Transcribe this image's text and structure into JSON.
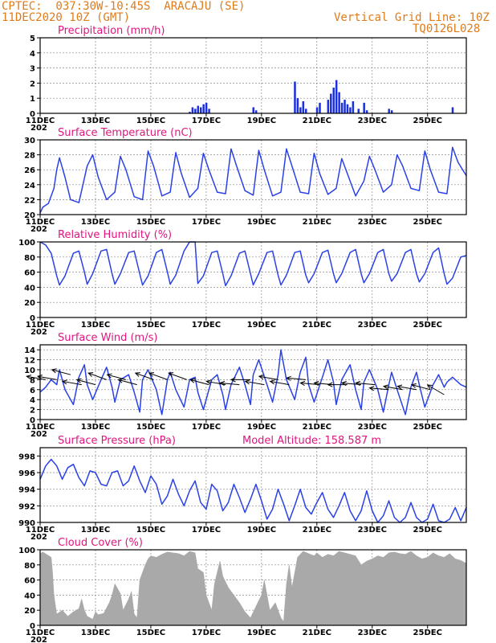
{
  "header": {
    "location": "CPTEC:  037:30W-10:45S  ARACAJU (SE)",
    "datetime": "11DEC2020 10Z (GMT)",
    "grid_note": "Vertical Grid Line: 10Z",
    "model_code": "TQ0126L028"
  },
  "x_labels": [
    "11DEC",
    "13DEC",
    "15DEC",
    "17DEC",
    "19DEC",
    "21DEC",
    "23DEC",
    "25DEC"
  ],
  "year_stub": "202",
  "chart_data": [
    {
      "type": "bar",
      "title": "Precipitation (mm/h)",
      "ylim": [
        0,
        5
      ],
      "yticks": [
        0,
        1,
        2,
        3,
        4,
        5
      ],
      "x": [
        5.4,
        5.5,
        5.6,
        5.7,
        5.8,
        5.9,
        6.0,
        6.1,
        7.7,
        7.8,
        9.2,
        9.3,
        9.4,
        9.5,
        9.6,
        10.0,
        10.1,
        10.4,
        10.5,
        10.6,
        10.7,
        10.8,
        10.9,
        11.0,
        11.1,
        11.2,
        11.3,
        11.5,
        11.7,
        11.8,
        12.6,
        12.7,
        14.9
      ],
      "values": [
        0.1,
        0.4,
        0.3,
        0.5,
        0.4,
        0.6,
        0.7,
        0.3,
        0.4,
        0.2,
        2.1,
        1.0,
        0.4,
        0.8,
        0.3,
        0.4,
        0.7,
        0.9,
        1.3,
        1.7,
        2.2,
        1.4,
        0.7,
        0.9,
        0.6,
        0.4,
        0.8,
        0.3,
        0.7,
        0.2,
        0.3,
        0.2,
        0.4
      ],
      "grid": true
    },
    {
      "type": "line",
      "title": "Surface Temperature (nC)",
      "ylim": [
        20,
        30
      ],
      "yticks": [
        20,
        22,
        24,
        26,
        28,
        30
      ],
      "x": [
        0,
        0.1,
        0.3,
        0.5,
        0.6,
        0.7,
        0.9,
        1.1,
        1.4,
        1.7,
        1.9,
        2.1,
        2.4,
        2.7,
        2.9,
        3.1,
        3.4,
        3.7,
        3.9,
        4.1,
        4.4,
        4.7,
        4.9,
        5.1,
        5.4,
        5.7,
        5.9,
        6.1,
        6.4,
        6.7,
        6.9,
        7.1,
        7.4,
        7.7,
        7.9,
        8.1,
        8.4,
        8.7,
        8.9,
        9.1,
        9.4,
        9.7,
        9.9,
        10.1,
        10.4,
        10.7,
        10.9,
        11.1,
        11.4,
        11.7,
        11.9,
        12.1,
        12.4,
        12.7,
        12.9,
        13.1,
        13.4,
        13.7,
        13.9,
        14.1,
        14.4,
        14.7,
        14.9,
        15.1,
        15.4
      ],
      "values": [
        20.2,
        21.0,
        21.5,
        23.5,
        26.0,
        27.6,
        25.0,
        22.0,
        21.6,
        26.5,
        28.0,
        25.0,
        22.0,
        23.0,
        27.8,
        26.0,
        22.4,
        22.0,
        28.5,
        26.5,
        22.5,
        23.0,
        28.3,
        25.5,
        22.3,
        23.5,
        28.2,
        26.0,
        23.0,
        22.8,
        28.8,
        26.5,
        23.2,
        22.6,
        28.6,
        26.0,
        22.5,
        23.0,
        28.8,
        26.5,
        23.0,
        22.8,
        28.2,
        25.5,
        22.7,
        23.5,
        27.5,
        25.5,
        22.5,
        24.5,
        27.8,
        26.0,
        23.0,
        24.0,
        28.0,
        26.5,
        23.5,
        23.2,
        28.5,
        26.0,
        23.0,
        22.8,
        29.0,
        27.0,
        25.2
      ],
      "grid": true
    },
    {
      "type": "line",
      "title": "Relative Humidity (%)",
      "ylim": [
        0,
        100
      ],
      "yticks": [
        0,
        20,
        40,
        60,
        80,
        100
      ],
      "x": [
        0,
        0.2,
        0.4,
        0.6,
        0.7,
        0.9,
        1.2,
        1.4,
        1.6,
        1.7,
        1.9,
        2.2,
        2.4,
        2.6,
        2.7,
        2.9,
        3.2,
        3.4,
        3.6,
        3.7,
        3.9,
        4.2,
        4.4,
        4.6,
        4.7,
        4.9,
        5.2,
        5.4,
        5.6,
        5.7,
        5.9,
        6.2,
        6.4,
        6.6,
        6.7,
        6.9,
        7.2,
        7.4,
        7.6,
        7.7,
        7.9,
        8.2,
        8.4,
        8.6,
        8.7,
        8.9,
        9.2,
        9.4,
        9.6,
        9.7,
        9.9,
        10.2,
        10.4,
        10.6,
        10.7,
        10.9,
        11.2,
        11.4,
        11.6,
        11.7,
        11.9,
        12.2,
        12.4,
        12.6,
        12.7,
        12.9,
        13.2,
        13.4,
        13.6,
        13.7,
        13.9,
        14.2,
        14.4,
        14.6,
        14.7,
        14.9,
        15.2,
        15.4
      ],
      "values": [
        100,
        96,
        85,
        55,
        43,
        55,
        85,
        88,
        60,
        44,
        58,
        88,
        90,
        58,
        44,
        58,
        86,
        88,
        58,
        43,
        55,
        86,
        90,
        60,
        44,
        56,
        88,
        100,
        100,
        45,
        55,
        86,
        88,
        58,
        42,
        55,
        85,
        88,
        58,
        43,
        58,
        86,
        88,
        56,
        43,
        56,
        86,
        88,
        56,
        46,
        58,
        86,
        89,
        58,
        46,
        58,
        86,
        90,
        58,
        46,
        58,
        86,
        90,
        58,
        48,
        58,
        86,
        90,
        58,
        47,
        58,
        86,
        92,
        58,
        44,
        52,
        80,
        82
      ],
      "grid": true
    },
    {
      "type": "line",
      "title": "Surface Wind (m/s)",
      "ylim": [
        0,
        15
      ],
      "yticks": [
        0,
        2,
        4,
        6,
        8,
        10,
        12,
        14
      ],
      "x": [
        0,
        0.2,
        0.4,
        0.6,
        0.7,
        0.9,
        1.2,
        1.4,
        1.6,
        1.7,
        1.9,
        2.2,
        2.4,
        2.6,
        2.7,
        2.9,
        3.2,
        3.4,
        3.6,
        3.7,
        3.9,
        4.2,
        4.4,
        4.6,
        4.7,
        4.9,
        5.2,
        5.4,
        5.6,
        5.7,
        5.9,
        6.2,
        6.4,
        6.6,
        6.7,
        6.9,
        7.2,
        7.4,
        7.6,
        7.7,
        7.9,
        8.2,
        8.4,
        8.6,
        8.7,
        8.9,
        9.2,
        9.4,
        9.6,
        9.7,
        9.9,
        10.2,
        10.4,
        10.6,
        10.7,
        10.9,
        11.2,
        11.4,
        11.6,
        11.7,
        11.9,
        12.2,
        12.4,
        12.6,
        12.7,
        12.9,
        13.2,
        13.4,
        13.6,
        13.7,
        13.9,
        14.2,
        14.4,
        14.6,
        14.7,
        14.9,
        15.2,
        15.4
      ],
      "values": [
        5.5,
        6.5,
        8.0,
        7.0,
        10.0,
        6.0,
        3.0,
        8.5,
        11.0,
        7.0,
        4.0,
        8.0,
        10.5,
        6.5,
        3.5,
        8.0,
        9.0,
        5.5,
        1.5,
        8.0,
        10.0,
        6.0,
        1.0,
        8.0,
        9.5,
        6.0,
        2.5,
        8.0,
        8.5,
        5.5,
        2.0,
        8.0,
        9.0,
        5.0,
        2.0,
        7.0,
        10.5,
        7.0,
        3.0,
        9.0,
        12.0,
        7.0,
        3.5,
        9.0,
        14.0,
        8.0,
        4.0,
        9.5,
        12.5,
        7.0,
        3.5,
        8.5,
        12.0,
        7.5,
        3.0,
        8.0,
        11.0,
        6.0,
        2.0,
        7.5,
        10.0,
        6.0,
        1.5,
        7.0,
        9.5,
        6.0,
        1.0,
        6.5,
        9.5,
        7.0,
        2.5,
        7.0,
        9.0,
        6.5,
        7.5,
        8.5,
        7.0,
        6.5
      ],
      "wind_vectors": {
        "x": [
          0.2,
          0.6,
          1.1,
          1.5,
          2.0,
          2.4,
          3.1,
          3.5,
          4.1,
          4.6,
          5.3,
          6.1,
          6.7,
          7.2,
          7.6,
          8.1,
          8.6,
          9.0,
          9.6,
          10.1,
          10.6,
          11.1,
          11.6,
          12.1,
          12.6,
          13.1,
          13.6,
          14.1,
          14.6
        ],
        "speed": [
          8,
          8,
          9,
          7,
          7,
          8,
          8,
          7,
          8,
          8,
          8,
          7,
          7,
          7,
          8,
          7,
          8,
          7,
          8,
          7,
          7,
          7,
          7,
          7,
          6,
          6,
          6,
          6,
          5
        ],
        "dir_deg": [
          170,
          170,
          165,
          170,
          165,
          160,
          165,
          165,
          160,
          160,
          160,
          165,
          170,
          175,
          180,
          170,
          170,
          170,
          175,
          175,
          175,
          180,
          175,
          175,
          175,
          170,
          170,
          165,
          150
        ]
      },
      "grid": true
    },
    {
      "type": "line",
      "title": "Surface Pressure (hPa)",
      "annotation": "Model Altitude: 158.587 m",
      "ylim": [
        990,
        999
      ],
      "yticks": [
        990,
        992,
        994,
        996,
        998
      ],
      "x": [
        0,
        0.2,
        0.4,
        0.6,
        0.8,
        1.0,
        1.2,
        1.4,
        1.6,
        1.8,
        2.0,
        2.2,
        2.4,
        2.6,
        2.8,
        3.0,
        3.2,
        3.4,
        3.6,
        3.8,
        4.0,
        4.2,
        4.4,
        4.6,
        4.8,
        5.0,
        5.2,
        5.4,
        5.6,
        5.8,
        6.0,
        6.2,
        6.4,
        6.6,
        6.8,
        7.0,
        7.2,
        7.4,
        7.6,
        7.8,
        8.0,
        8.2,
        8.4,
        8.6,
        8.8,
        9.0,
        9.2,
        9.4,
        9.6,
        9.8,
        10.0,
        10.2,
        10.4,
        10.6,
        10.8,
        11.0,
        11.2,
        11.4,
        11.6,
        11.8,
        12.0,
        12.2,
        12.4,
        12.6,
        12.8,
        13.0,
        13.2,
        13.4,
        13.6,
        13.8,
        14.0,
        14.2,
        14.4,
        14.6,
        14.8,
        15.0,
        15.2,
        15.4
      ],
      "values": [
        995.2,
        996.8,
        997.6,
        996.8,
        995.2,
        996.6,
        997.0,
        995.4,
        994.4,
        996.2,
        996.0,
        994.6,
        994.4,
        996.0,
        996.2,
        994.4,
        995.0,
        996.8,
        995.0,
        993.6,
        995.6,
        994.6,
        992.2,
        993.2,
        995.2,
        993.4,
        992.0,
        993.8,
        995.0,
        992.4,
        991.6,
        994.6,
        993.8,
        991.4,
        992.4,
        994.6,
        993.0,
        991.2,
        992.8,
        994.6,
        992.6,
        990.4,
        991.6,
        994.0,
        992.2,
        990.2,
        992.0,
        994.0,
        991.8,
        991.0,
        992.4,
        993.6,
        991.6,
        990.6,
        992.0,
        993.6,
        991.4,
        990.2,
        991.4,
        993.8,
        991.4,
        990.0,
        990.8,
        992.6,
        990.6,
        990.0,
        990.6,
        992.4,
        990.6,
        990.0,
        990.4,
        992.2,
        990.2,
        990.0,
        990.4,
        991.8,
        990.2,
        991.8
      ],
      "grid": true
    },
    {
      "type": "area",
      "title": "Cloud Cover (%)",
      "ylim": [
        0,
        100
      ],
      "yticks": [
        0,
        20,
        40,
        60,
        80,
        100
      ],
      "x": [
        0,
        0.1,
        0.4,
        0.45,
        0.5,
        0.6,
        0.8,
        1.0,
        1.2,
        1.4,
        1.5,
        1.6,
        1.7,
        1.8,
        1.9,
        2.0,
        2.1,
        2.3,
        2.5,
        2.6,
        2.7,
        2.9,
        3.0,
        3.2,
        3.3,
        3.4,
        3.5,
        3.6,
        3.8,
        3.9,
        4.0,
        4.2,
        4.4,
        4.6,
        4.8,
        5.0,
        5.2,
        5.4,
        5.6,
        5.7,
        5.9,
        6.0,
        6.2,
        6.3,
        6.5,
        6.6,
        6.8,
        7.0,
        7.2,
        7.4,
        7.6,
        7.8,
        8.0,
        8.1,
        8.3,
        8.5,
        8.7,
        8.8,
        8.9,
        9.0,
        9.1,
        9.3,
        9.5,
        9.7,
        9.9,
        10.0,
        10.2,
        10.4,
        10.6,
        10.8,
        11.0,
        11.2,
        11.4,
        11.6,
        11.8,
        12.0,
        12.2,
        12.4,
        12.6,
        12.8,
        13.0,
        13.2,
        13.4,
        13.6,
        13.8,
        14.0,
        14.2,
        14.4,
        14.6,
        14.8,
        15.0,
        15.2,
        15.4
      ],
      "values": [
        95,
        97,
        90,
        70,
        40,
        15,
        20,
        12,
        18,
        22,
        35,
        20,
        12,
        10,
        8,
        18,
        14,
        16,
        30,
        40,
        55,
        42,
        20,
        35,
        45,
        15,
        10,
        60,
        80,
        88,
        92,
        90,
        94,
        97,
        96,
        95,
        92,
        98,
        96,
        75,
        70,
        40,
        20,
        55,
        85,
        65,
        50,
        40,
        30,
        18,
        10,
        25,
        40,
        60,
        20,
        30,
        10,
        5,
        55,
        80,
        50,
        90,
        98,
        95,
        92,
        96,
        90,
        94,
        92,
        98,
        96,
        94,
        92,
        80,
        85,
        88,
        92,
        90,
        96,
        97,
        95,
        94,
        98,
        92,
        88,
        90,
        96,
        92,
        90,
        95,
        88,
        86,
        82
      ],
      "grid": true
    }
  ]
}
